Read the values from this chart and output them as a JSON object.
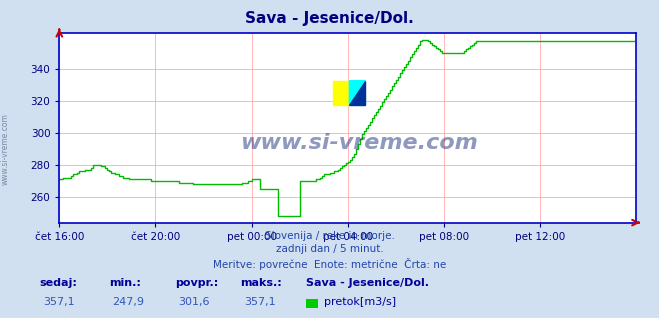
{
  "title": "Sava - Jesenice/Dol.",
  "title_color": "#000080",
  "bg_color": "#d0e0f0",
  "plot_bg_color": "#ffffff",
  "line_color": "#00bb00",
  "axis_color": "#0000cc",
  "grid_color": "#ffaaaa",
  "tick_color": "#000080",
  "watermark_text": "www.si-vreme.com",
  "watermark_color": "#334488",
  "sidebar_text": "www.si-vreme.com",
  "xlim": [
    0,
    288
  ],
  "ylim": [
    244,
    362
  ],
  "yticks": [
    260,
    280,
    300,
    320,
    340
  ],
  "xtick_labels": [
    "čet 16:00",
    "čet 20:00",
    "pet 00:00",
    "pet 04:00",
    "pet 08:00",
    "pet 12:00"
  ],
  "xtick_positions": [
    0,
    48,
    96,
    144,
    192,
    240
  ],
  "subtitle_lines": [
    "Slovenija / reke in morje.",
    "zadnji dan / 5 minut.",
    "Meritve: povrečne  Enote: metrične  Črta: ne"
  ],
  "footer_labels": [
    "sedaj:",
    "min.:",
    "povpr.:",
    "maks.:"
  ],
  "footer_values": [
    "357,1",
    "247,9",
    "301,6",
    "357,1"
  ],
  "footer_station": "Sava - Jesenice/Dol.",
  "footer_legend_color": "#00cc00",
  "footer_legend_label": "pretok[m3/s]",
  "y_data": [
    271,
    271,
    272,
    272,
    272,
    272,
    273,
    274,
    274,
    275,
    276,
    276,
    276,
    277,
    277,
    277,
    278,
    280,
    280,
    280,
    280,
    279,
    279,
    278,
    277,
    276,
    275,
    275,
    274,
    274,
    273,
    273,
    272,
    272,
    272,
    271,
    271,
    271,
    271,
    271,
    271,
    271,
    271,
    271,
    271,
    271,
    270,
    270,
    270,
    270,
    270,
    270,
    270,
    270,
    270,
    270,
    270,
    270,
    270,
    270,
    269,
    269,
    269,
    269,
    269,
    269,
    269,
    268,
    268,
    268,
    268,
    268,
    268,
    268,
    268,
    268,
    268,
    268,
    268,
    268,
    268,
    268,
    268,
    268,
    268,
    268,
    268,
    268,
    268,
    268,
    268,
    269,
    269,
    269,
    270,
    270,
    271,
    271,
    271,
    271,
    265,
    265,
    265,
    265,
    265,
    265,
    265,
    265,
    265,
    248,
    248,
    248,
    248,
    248,
    248,
    248,
    248,
    248,
    248,
    248,
    270,
    270,
    270,
    270,
    270,
    270,
    270,
    270,
    271,
    271,
    272,
    273,
    274,
    274,
    274,
    275,
    275,
    276,
    276,
    277,
    278,
    279,
    280,
    281,
    282,
    283,
    285,
    287,
    290,
    293,
    296,
    299,
    301,
    303,
    305,
    307,
    309,
    311,
    313,
    315,
    317,
    319,
    321,
    323,
    325,
    327,
    329,
    331,
    333,
    335,
    337,
    339,
    341,
    343,
    345,
    347,
    349,
    351,
    353,
    355,
    357,
    358,
    358,
    358,
    357,
    356,
    355,
    354,
    353,
    352,
    351,
    350,
    350,
    350,
    350,
    350,
    350,
    350,
    350,
    350,
    350,
    350,
    351,
    352,
    353,
    354,
    355,
    356,
    357,
    357,
    357,
    357,
    357,
    357,
    357,
    357,
    357,
    357,
    357,
    357,
    357,
    357,
    357,
    357,
    357,
    357,
    357,
    357,
    357,
    357,
    357,
    357,
    357,
    357,
    357,
    357,
    357,
    357,
    357,
    357,
    357,
    357,
    357,
    357,
    357,
    357,
    357,
    357,
    357,
    357,
    357,
    357,
    357,
    357,
    357,
    357,
    357,
    357,
    357,
    357,
    357,
    357,
    357,
    357,
    357,
    357,
    357,
    357,
    357,
    357,
    357,
    357,
    357,
    357,
    357,
    357,
    357,
    357,
    357,
    357,
    357,
    357,
    357,
    357,
    357,
    357,
    357,
    357
  ]
}
